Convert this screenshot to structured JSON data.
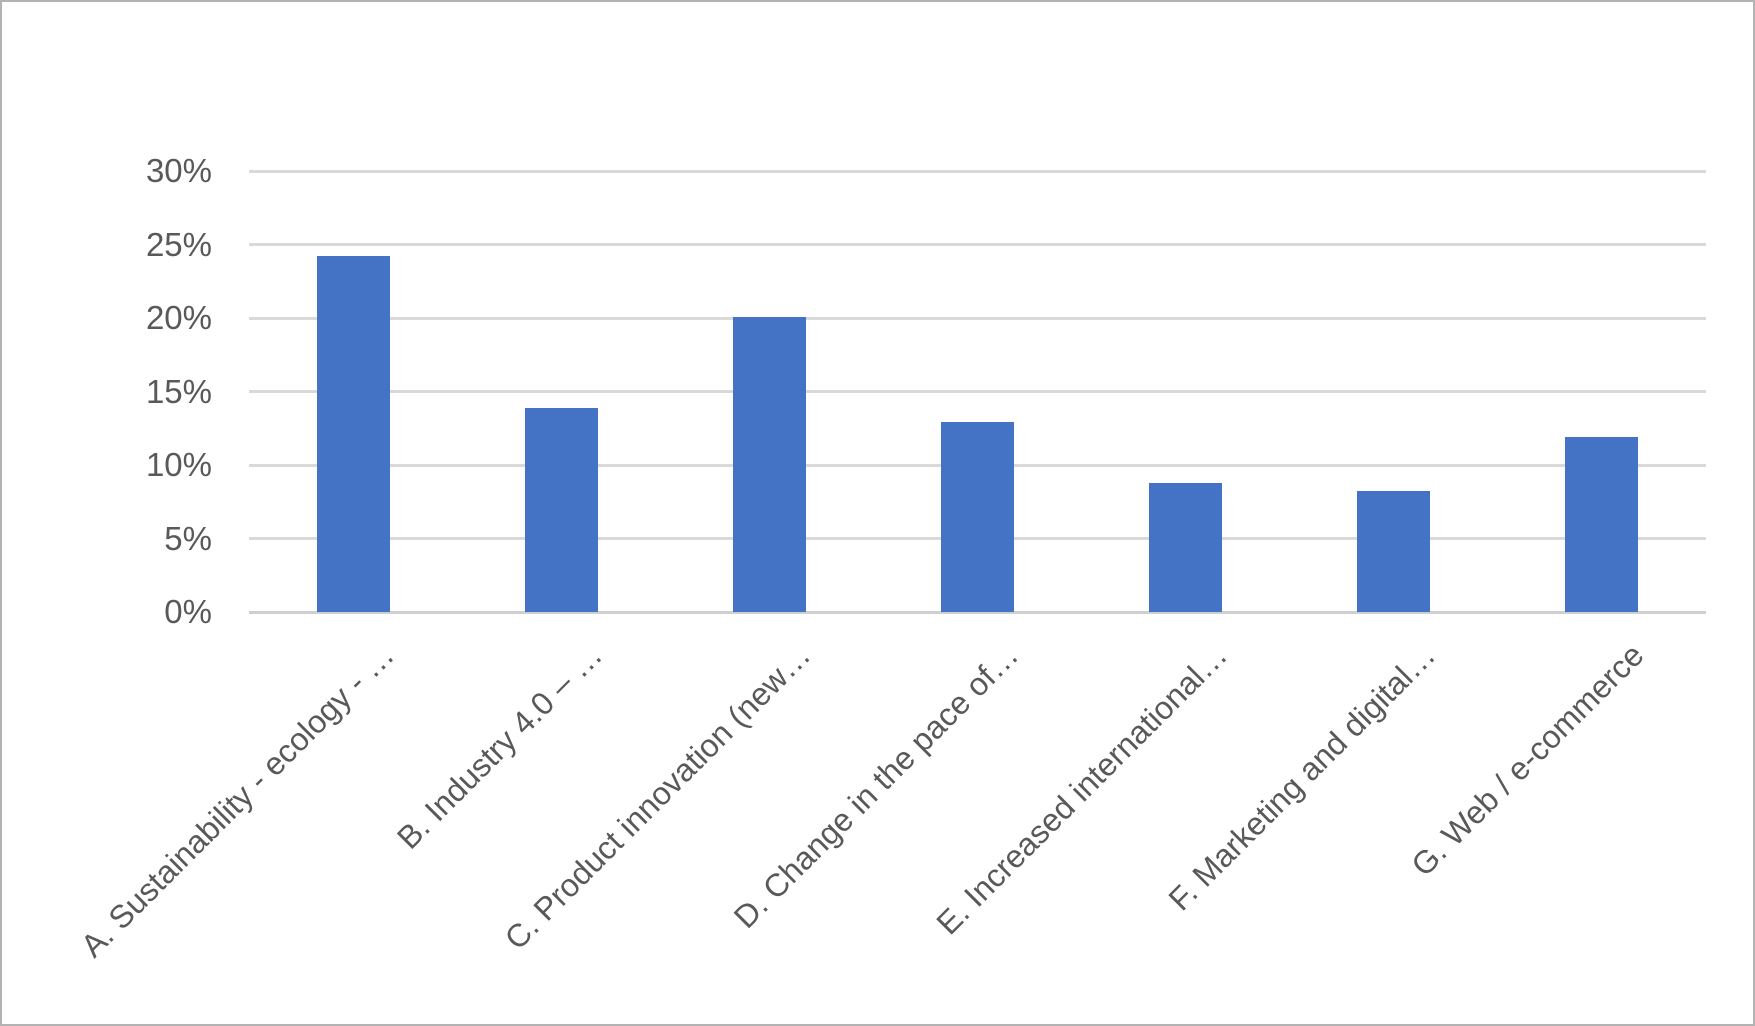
{
  "window": {
    "background_color": "#FFFFFF",
    "frame_border_color": "#B3B3B3"
  },
  "chart_data": {
    "type": "bar",
    "title": "",
    "xlabel": "",
    "ylabel": "",
    "categories": [
      "A. Sustainability - ecology - …",
      "B. Industry 4.0 – …",
      "C. Product innovation (new…",
      "D. Change in the pace of…",
      "E. Increased international…",
      "F. Marketing and digital…",
      "G. Web / e-commerce"
    ],
    "values": [
      24.2,
      13.9,
      20.1,
      12.9,
      8.8,
      8.2,
      11.9
    ],
    "value_unit": "%",
    "ylim": [
      0,
      30
    ],
    "yticks": [
      0,
      5,
      10,
      15,
      20,
      25,
      30
    ],
    "ytick_labels": [
      "0%",
      "5%",
      "10%",
      "15%",
      "20%",
      "25%",
      "30%"
    ],
    "grid": true,
    "legend_position": "none",
    "bar_color": "#4472C4",
    "gridline_color": "#D9D9D9",
    "axis_line_color": "#CFCFCF",
    "label_color": "#595959"
  }
}
